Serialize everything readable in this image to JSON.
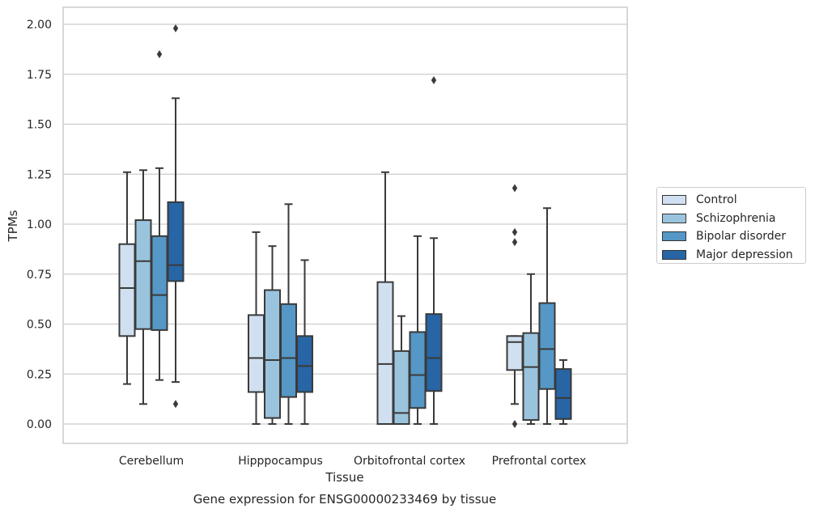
{
  "chart_data": {
    "type": "box",
    "xlabel": "Tissue",
    "ylabel": "TPMs",
    "caption": "Gene expression for ENSG00000233469 by tissue",
    "categories": [
      "Cerebellum",
      "Hipppocampus",
      "Orbitofrontal cortex",
      "Prefrontal cortex"
    ],
    "ylim": [
      -0.1,
      2.08
    ],
    "yticks": [
      "0.00",
      "0.25",
      "0.50",
      "0.75",
      "1.00",
      "1.25",
      "1.50",
      "1.75",
      "2.00"
    ],
    "grid": true,
    "legend_position": "right",
    "series": [
      {
        "name": "Control",
        "color": "#d0e0f0",
        "boxes": [
          {
            "whislo": 0.2,
            "q1": 0.44,
            "med": 0.68,
            "q3": 0.9,
            "whishi": 1.26,
            "fliers": []
          },
          {
            "whislo": 0.0,
            "q1": 0.16,
            "med": 0.33,
            "q3": 0.545,
            "whishi": 0.96,
            "fliers": []
          },
          {
            "whislo": 0.0,
            "q1": 0.0,
            "med": 0.3,
            "q3": 0.71,
            "whishi": 1.26,
            "fliers": []
          },
          {
            "whislo": 0.1,
            "q1": 0.27,
            "med": 0.41,
            "q3": 0.44,
            "whishi": 0.44,
            "fliers": [
              0.0,
              0.91,
              0.96,
              1.18
            ]
          }
        ]
      },
      {
        "name": "Schizophrenia",
        "color": "#9ac4dd",
        "boxes": [
          {
            "whislo": 0.1,
            "q1": 0.475,
            "med": 0.815,
            "q3": 1.02,
            "whishi": 1.27,
            "fliers": []
          },
          {
            "whislo": 0.0,
            "q1": 0.03,
            "med": 0.32,
            "q3": 0.67,
            "whishi": 0.89,
            "fliers": []
          },
          {
            "whislo": 0.0,
            "q1": 0.0,
            "med": 0.055,
            "q3": 0.365,
            "whishi": 0.54,
            "fliers": []
          },
          {
            "whislo": 0.0,
            "q1": 0.02,
            "med": 0.285,
            "q3": 0.455,
            "whishi": 0.75,
            "fliers": []
          }
        ]
      },
      {
        "name": "Bipolar disorder",
        "color": "#5597c6",
        "boxes": [
          {
            "whislo": 0.22,
            "q1": 0.47,
            "med": 0.645,
            "q3": 0.94,
            "whishi": 1.28,
            "fliers": [
              1.85
            ]
          },
          {
            "whislo": 0.0,
            "q1": 0.135,
            "med": 0.33,
            "q3": 0.6,
            "whishi": 1.1,
            "fliers": []
          },
          {
            "whislo": 0.0,
            "q1": 0.08,
            "med": 0.245,
            "q3": 0.46,
            "whishi": 0.94,
            "fliers": []
          },
          {
            "whislo": 0.0,
            "q1": 0.175,
            "med": 0.375,
            "q3": 0.605,
            "whishi": 1.08,
            "fliers": []
          }
        ]
      },
      {
        "name": "Major depression",
        "color": "#2765a5",
        "boxes": [
          {
            "whislo": 0.21,
            "q1": 0.715,
            "med": 0.795,
            "q3": 1.11,
            "whishi": 1.63,
            "fliers": [
              0.1,
              1.98
            ]
          },
          {
            "whislo": 0.0,
            "q1": 0.16,
            "med": 0.29,
            "q3": 0.44,
            "whishi": 0.82,
            "fliers": []
          },
          {
            "whislo": 0.0,
            "q1": 0.165,
            "med": 0.33,
            "q3": 0.55,
            "whishi": 0.93,
            "fliers": [
              1.72
            ]
          },
          {
            "whislo": 0.0,
            "q1": 0.025,
            "med": 0.13,
            "q3": 0.275,
            "whishi": 0.32,
            "fliers": []
          }
        ]
      }
    ]
  }
}
